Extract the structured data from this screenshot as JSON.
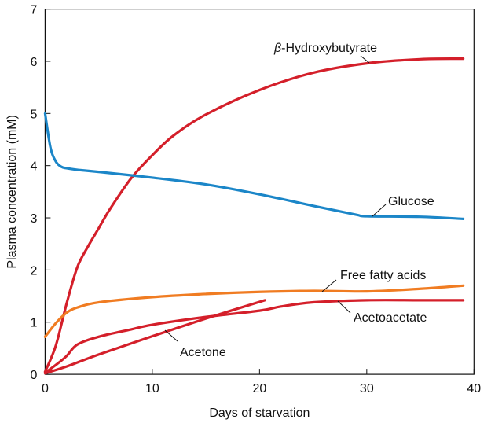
{
  "chart_data": {
    "type": "line",
    "title": "",
    "xlabel": "Days of starvation",
    "ylabel": "Plasma concentration (mM)",
    "xlim": [
      0,
      40
    ],
    "ylim": [
      0,
      7
    ],
    "x_ticks": [
      0,
      10,
      20,
      30,
      40
    ],
    "y_ticks": [
      0,
      1,
      2,
      3,
      4,
      5,
      6,
      7
    ],
    "grid": false,
    "series": [
      {
        "key": "beta_hydroxybutyrate",
        "name": "β-Hydroxybutyrate",
        "label_prefix": "β",
        "label_suffix": "-Hydroxybutyrate",
        "color": "#d41f2a",
        "x": [
          0,
          1,
          2,
          3,
          4,
          5,
          6,
          8,
          10,
          12,
          15,
          20,
          25,
          30,
          35,
          39
        ],
        "y": [
          0.05,
          0.55,
          1.35,
          2.05,
          2.45,
          2.8,
          3.15,
          3.75,
          4.2,
          4.58,
          4.98,
          5.45,
          5.78,
          5.96,
          6.04,
          6.05
        ]
      },
      {
        "key": "glucose",
        "name": "Glucose",
        "color": "#1b86c8",
        "x": [
          0,
          0.5,
          1,
          1.5,
          2,
          3,
          5,
          10,
          15,
          20,
          25,
          29,
          30,
          35,
          39
        ],
        "y": [
          5.0,
          4.35,
          4.08,
          3.98,
          3.95,
          3.92,
          3.88,
          3.77,
          3.64,
          3.45,
          3.23,
          3.06,
          3.03,
          3.02,
          2.98
        ]
      },
      {
        "key": "free_fatty_acids",
        "name": "Free fatty acids",
        "color": "#f07c22",
        "x": [
          0,
          1,
          2,
          3,
          5,
          10,
          15,
          20,
          25,
          30,
          35,
          39
        ],
        "y": [
          0.72,
          0.98,
          1.18,
          1.28,
          1.38,
          1.48,
          1.54,
          1.58,
          1.6,
          1.59,
          1.64,
          1.7
        ]
      },
      {
        "key": "acetoacetate",
        "name": "Acetoacetate",
        "color": "#d41f2a",
        "x": [
          0,
          1,
          2,
          3,
          5,
          8,
          10,
          15,
          20,
          22,
          25,
          30,
          35,
          39
        ],
        "y": [
          0.03,
          0.18,
          0.35,
          0.57,
          0.72,
          0.86,
          0.95,
          1.1,
          1.22,
          1.3,
          1.38,
          1.42,
          1.42,
          1.42
        ]
      },
      {
        "key": "acetone",
        "name": "Acetone",
        "color": "#d41f2a",
        "x": [
          0,
          2,
          5,
          10,
          15,
          20.5
        ],
        "y": [
          0.02,
          0.15,
          0.38,
          0.73,
          1.07,
          1.42
        ]
      }
    ]
  }
}
